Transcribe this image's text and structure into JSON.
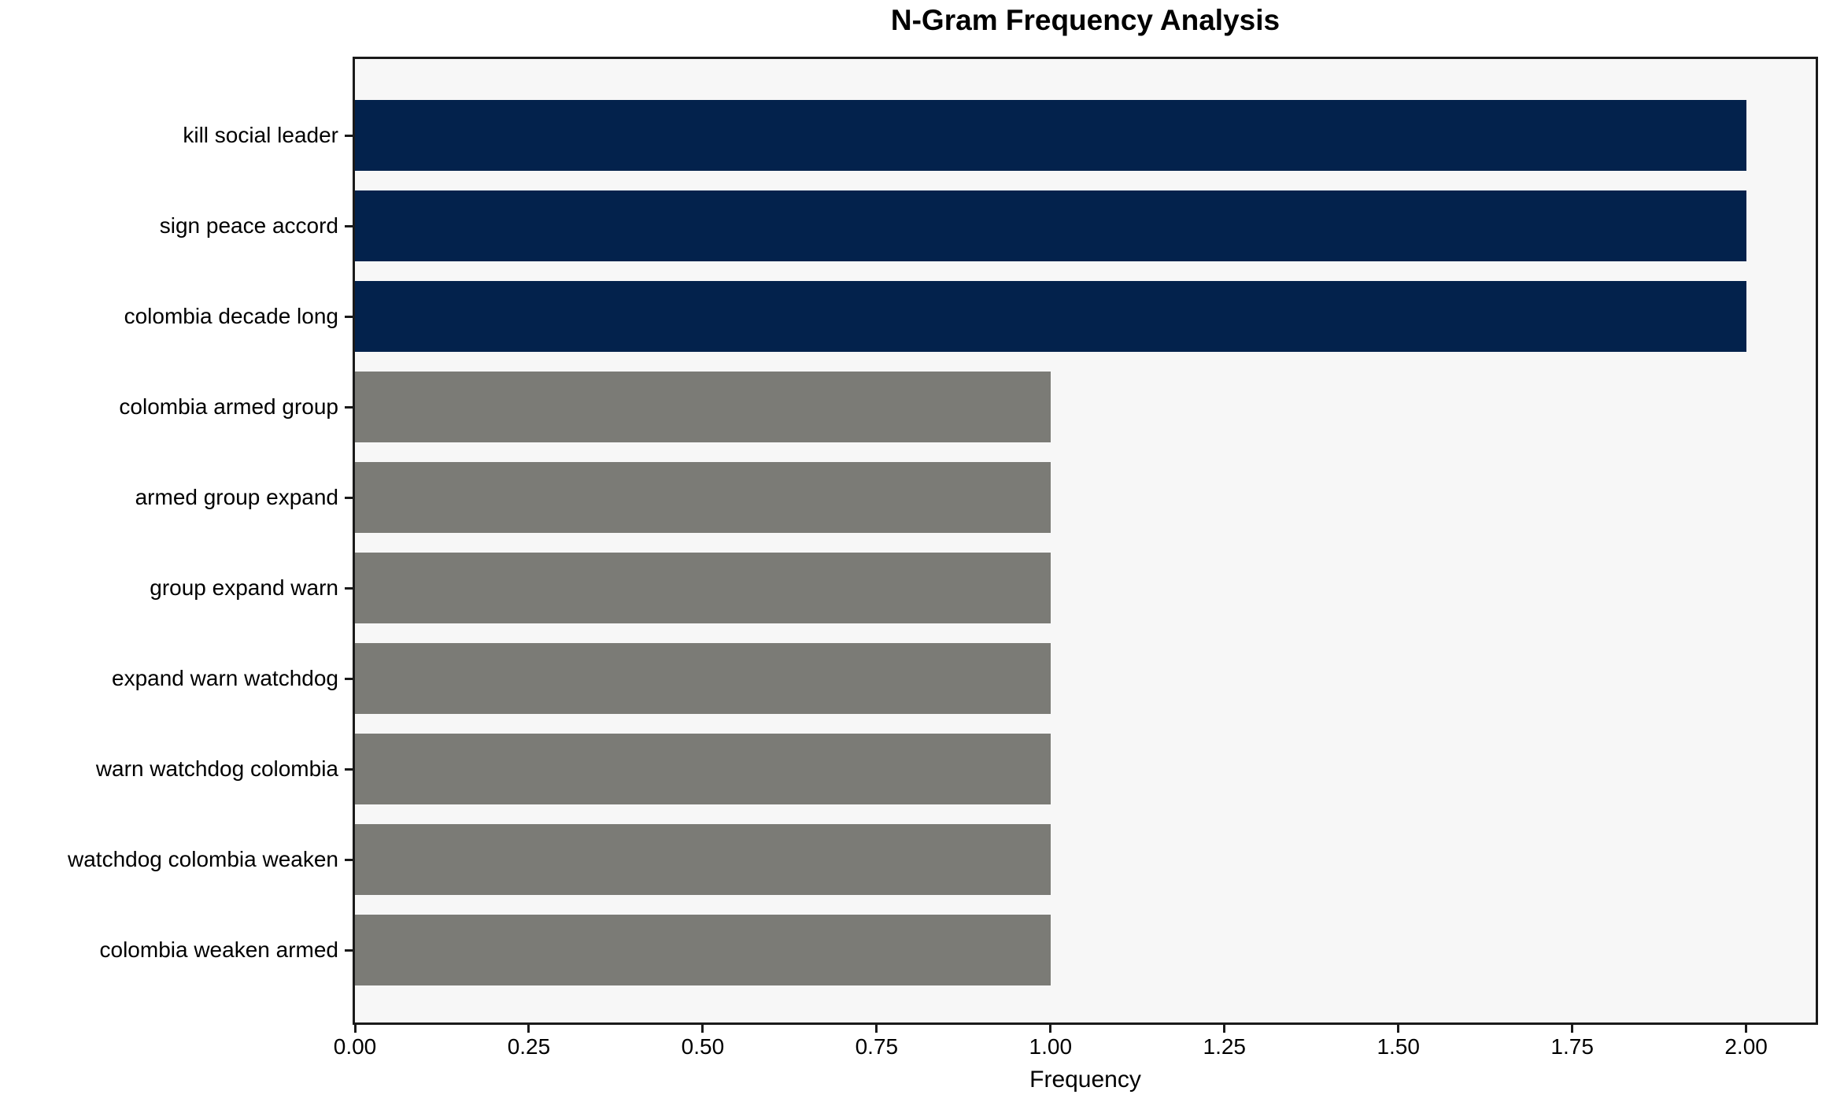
{
  "chart_data": {
    "type": "bar",
    "orientation": "horizontal",
    "title": "N-Gram Frequency Analysis",
    "xlabel": "Frequency",
    "ylabel": "",
    "categories": [
      "kill social leader",
      "sign peace accord",
      "colombia decade long",
      "colombia armed group",
      "armed group expand",
      "group expand warn",
      "expand warn watchdog",
      "warn watchdog colombia",
      "watchdog colombia weaken",
      "colombia weaken armed"
    ],
    "values": [
      2,
      2,
      2,
      1,
      1,
      1,
      1,
      1,
      1,
      1
    ],
    "bar_colors": [
      "#03224c",
      "#03224c",
      "#03224c",
      "#7b7b76",
      "#7b7b76",
      "#7b7b76",
      "#7b7b76",
      "#7b7b76",
      "#7b7b76",
      "#7b7b76"
    ],
    "xlim": [
      0,
      2.1
    ],
    "xticks": [
      0.0,
      0.25,
      0.5,
      0.75,
      1.0,
      1.25,
      1.5,
      1.75,
      2.0
    ],
    "xtick_labels": [
      "0.00",
      "0.25",
      "0.50",
      "0.75",
      "1.00",
      "1.25",
      "1.50",
      "1.75",
      "2.00"
    ],
    "grid": false,
    "legend": false,
    "colors": {
      "highlight_bar": "#03224c",
      "default_bar": "#7b7b76",
      "plot_background": "#f7f7f7",
      "figure_background": "#ffffff",
      "spine": "#1a1a1a",
      "text": "#000000"
    }
  }
}
